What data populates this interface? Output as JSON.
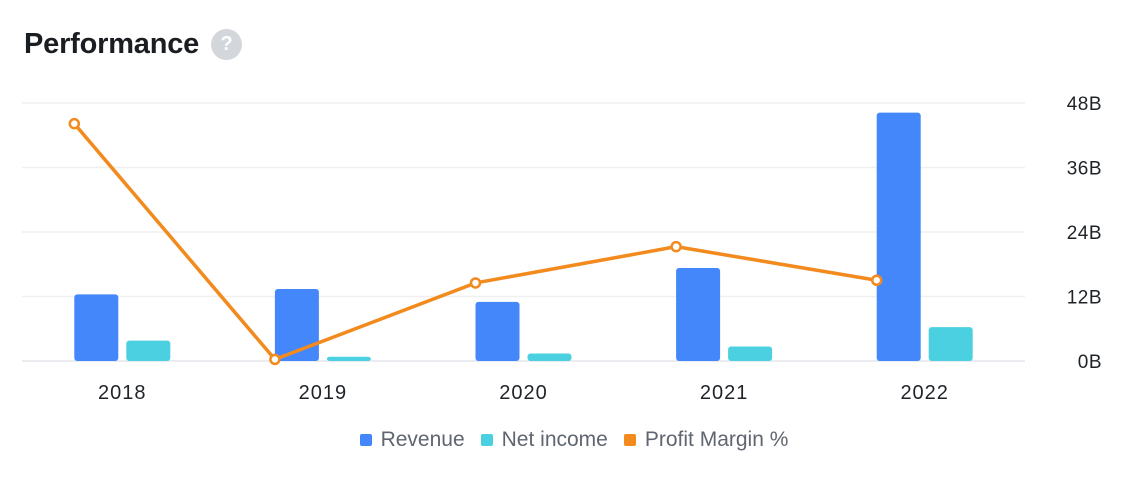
{
  "header": {
    "title": "Performance",
    "help_glyph": "?"
  },
  "chart_data": {
    "type": "bar",
    "categories": [
      "2018",
      "2019",
      "2020",
      "2021",
      "2022"
    ],
    "series": [
      {
        "name": "Revenue",
        "kind": "bar",
        "color": "#4387fa",
        "values": [
          12.4,
          13.4,
          11.0,
          17.3,
          46.2
        ]
      },
      {
        "name": "Net income",
        "kind": "bar",
        "color": "#4ad0e0",
        "values": [
          3.8,
          0.8,
          1.4,
          2.7,
          6.3
        ]
      },
      {
        "name": "Profit Margin %",
        "kind": "line",
        "color": "#f28a1e",
        "values": [
          43.8,
          0.3,
          14.4,
          21.1,
          14.9
        ]
      }
    ],
    "y_axis": {
      "side": "right",
      "ticks": [
        "0B",
        "12B",
        "24B",
        "36B",
        "48B"
      ],
      "ylim": [
        0,
        48
      ]
    },
    "legend": [
      "Revenue",
      "Net income",
      "Profit Margin %"
    ],
    "legend_position": "bottom-center",
    "grid": true
  }
}
